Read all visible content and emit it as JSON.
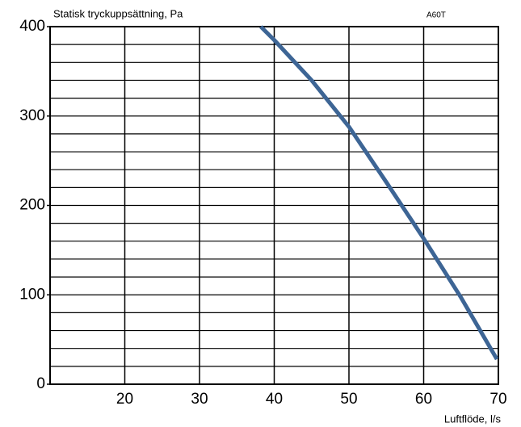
{
  "chart_data": {
    "type": "line",
    "title": "Statisk tryckuppsättning, Pa",
    "subtitle": "A60T",
    "x_label": "Luftflöde, l/s",
    "x": [
      38.2,
      40,
      45,
      50,
      55,
      60,
      65,
      69.8
    ],
    "series": [
      {
        "color": "#3d6595",
        "values": [
          400,
          385,
          340,
          288,
          226,
          163,
          97,
          28
        ]
      }
    ],
    "xlim": [
      10,
      70
    ],
    "xticks": [
      20,
      30,
      40,
      50,
      60,
      70
    ],
    "ylim": [
      0,
      400
    ],
    "yticks": [
      0,
      100,
      200,
      300,
      400
    ],
    "y_gridlines": [
      20,
      40,
      60,
      80,
      100,
      120,
      140,
      160,
      180,
      200,
      220,
      240,
      260,
      280,
      300,
      320,
      340,
      360,
      380,
      400
    ],
    "grid": true
  }
}
